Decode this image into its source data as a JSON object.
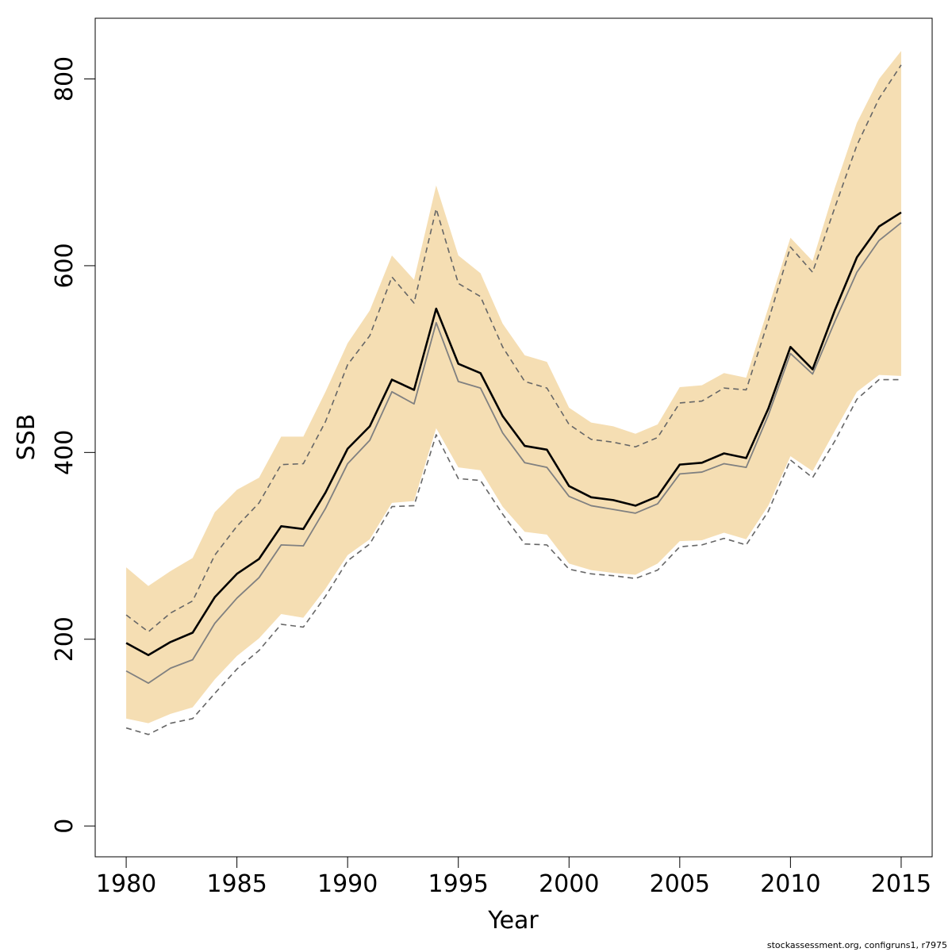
{
  "chart_data": {
    "type": "line",
    "title": "",
    "xlabel": "Year",
    "ylabel": "SSB",
    "xlim": [
      1978.6,
      2016.4
    ],
    "ylim": [
      -33,
      865
    ],
    "xticks": [
      "1980",
      "1985",
      "1990",
      "1995",
      "2000",
      "2005",
      "2010",
      "2015"
    ],
    "yticks": [
      "0",
      "200",
      "400",
      "600",
      "800"
    ],
    "grid": false,
    "legend": "none",
    "x": [
      1980,
      1981,
      1982,
      1983,
      1984,
      1985,
      1986,
      1987,
      1988,
      1989,
      1990,
      1991,
      1992,
      1993,
      1994,
      1995,
      1996,
      1997,
      1998,
      1999,
      2000,
      2001,
      2002,
      2003,
      2004,
      2005,
      2006,
      2007,
      2008,
      2009,
      2010,
      2011,
      2012,
      2013,
      2014,
      2015
    ],
    "colors": {
      "band": "#f5deb3",
      "main_line": "#000000",
      "secondary_line": "#808080",
      "dashed_lines": "#666666"
    },
    "series": [
      {
        "role": "band_upper",
        "values": [
          277,
          257,
          273,
          287,
          336,
          360,
          373,
          417,
          417,
          465,
          517,
          552,
          611,
          585,
          686,
          611,
          592,
          538,
          504,
          497,
          448,
          432,
          428,
          420,
          430,
          470,
          472,
          485,
          480,
          555,
          630,
          605,
          683,
          753,
          800,
          830
        ]
      },
      {
        "role": "band_lower",
        "values": [
          115,
          110,
          120,
          127,
          157,
          182,
          201,
          227,
          223,
          254,
          290,
          307,
          346,
          348,
          426,
          384,
          381,
          342,
          315,
          312,
          281,
          274,
          271,
          269,
          281,
          305,
          306,
          314,
          307,
          343,
          396,
          380,
          423,
          465,
          483,
          482
        ]
      },
      {
        "role": "main",
        "values": [
          196,
          183,
          197,
          207,
          245,
          270,
          286,
          321,
          318,
          357,
          404,
          428,
          478,
          467,
          554,
          495,
          485,
          439,
          407,
          403,
          364,
          352,
          349,
          343,
          353,
          387,
          389,
          399,
          394,
          447,
          513,
          489,
          552,
          609,
          642,
          657
        ]
      },
      {
        "role": "secondary",
        "values": [
          166,
          153,
          169,
          178,
          217,
          244,
          266,
          301,
          300,
          340,
          388,
          413,
          465,
          452,
          539,
          476,
          469,
          421,
          389,
          384,
          353,
          343,
          339,
          335,
          345,
          377,
          379,
          388,
          384,
          440,
          506,
          484,
          540,
          593,
          627,
          646
        ]
      },
      {
        "role": "dashed_upper",
        "values": [
          226,
          208,
          228,
          241,
          290,
          321,
          346,
          387,
          388,
          433,
          494,
          525,
          588,
          560,
          661,
          581,
          567,
          513,
          476,
          469,
          430,
          414,
          411,
          406,
          416,
          453,
          455,
          469,
          467,
          541,
          620,
          593,
          662,
          729,
          779,
          815
        ]
      },
      {
        "role": "dashed_lower",
        "values": [
          105,
          98,
          110,
          115,
          142,
          168,
          188,
          216,
          213,
          246,
          284,
          302,
          342,
          343,
          419,
          372,
          370,
          334,
          302,
          301,
          275,
          270,
          268,
          265,
          274,
          299,
          301,
          308,
          301,
          337,
          392,
          373,
          412,
          457,
          478,
          478
        ]
      }
    ]
  },
  "footer": {
    "text": "stockassessment.org, configruns1, r7975"
  }
}
